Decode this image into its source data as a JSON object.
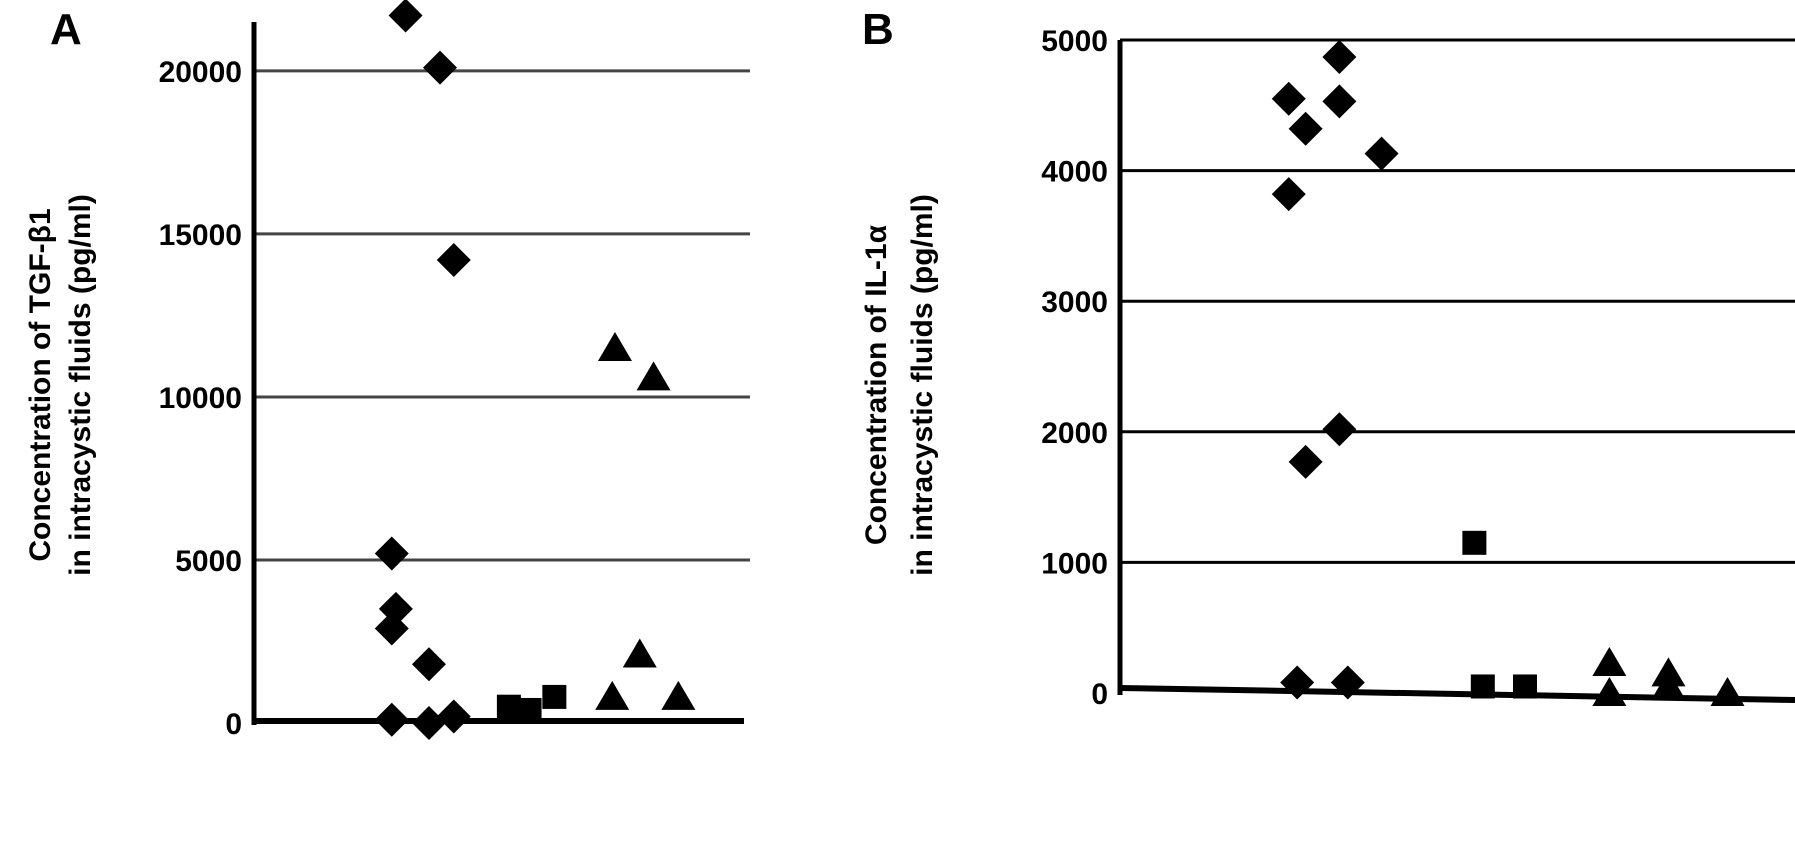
{
  "chart_data": [
    {
      "type": "scatter",
      "panel_label": "A",
      "title": "",
      "xlabel": "",
      "ylabel_lines": [
        "Concentration of TGF-β1",
        "in intracystic fluids (pg/ml)"
      ],
      "ylim": [
        0,
        21500
      ],
      "yticks": [
        0,
        5000,
        10000,
        15000,
        20000
      ],
      "ytick_labels": [
        "0",
        "5000",
        "10000",
        "15000",
        "20000"
      ],
      "grid": true,
      "groups": [
        {
          "marker": "diamond",
          "x": [
            1.1,
            1.35,
            1.45,
            1.0,
            1.03,
            1.0,
            1.27,
            1.45,
            1.0,
            1.27
          ],
          "y": [
            21700,
            20100,
            14200,
            5200,
            3500,
            2900,
            1800,
            200,
            100,
            0
          ]
        },
        {
          "marker": "square",
          "x": [
            1.85,
            2.0,
            2.18
          ],
          "y": [
            500,
            400,
            800
          ]
        },
        {
          "marker": "triangle",
          "x": [
            2.62,
            2.9,
            2.8,
            2.6,
            3.08
          ],
          "y": [
            11500,
            10600,
            2100,
            800,
            800
          ]
        }
      ]
    },
    {
      "type": "scatter",
      "panel_label": "B",
      "title": "",
      "xlabel": "",
      "ylabel_lines": [
        "Concentration of IL-1α",
        "in intracystic fluids (pg/ml)"
      ],
      "ylim": [
        0,
        5000
      ],
      "yticks": [
        0,
        1000,
        2000,
        3000,
        4000,
        5000
      ],
      "ytick_labels": [
        "0",
        "1000",
        "2000",
        "3000",
        "4000",
        "5000"
      ],
      "grid": true,
      "groups": [
        {
          "marker": "diamond",
          "x": [
            1.3,
            1.0,
            1.1,
            1.3,
            1.55,
            1.0,
            1.3,
            1.1,
            1.05,
            1.35
          ],
          "y": [
            4870,
            4550,
            4320,
            4530,
            4130,
            3820,
            2020,
            1770,
            80,
            80
          ]
        },
        {
          "marker": "square",
          "x": [
            2.1,
            2.15,
            2.4
          ],
          "y": [
            1150,
            50,
            50
          ]
        },
        {
          "marker": "triangle",
          "x": [
            2.9,
            3.25,
            2.9,
            3.25,
            3.6
          ],
          "y": [
            230,
            150,
            0,
            50,
            0
          ]
        }
      ]
    }
  ]
}
